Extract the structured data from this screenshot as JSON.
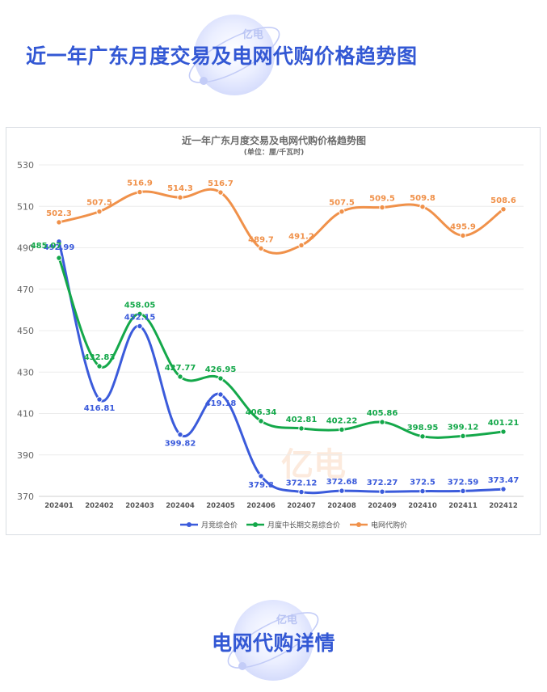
{
  "page": {
    "top_heading": "近一年广东月度交易及电网代购价格趋势图",
    "bottom_heading": "电网代购详情",
    "logo_text": "亿电",
    "accent_color": "#3358d4"
  },
  "chart_data": {
    "type": "line",
    "title": "近一年广东月度交易及电网代购价格趋势图",
    "subtitle": "(单位：厘/千瓦时)",
    "categories": [
      "202401",
      "202402",
      "202403",
      "202404",
      "202405",
      "202406",
      "202407",
      "202408",
      "202409",
      "202410",
      "202411",
      "202412"
    ],
    "ylim": [
      370,
      530
    ],
    "yticks": [
      "530",
      "510",
      "490",
      "470",
      "450",
      "430",
      "410",
      "390",
      "370"
    ],
    "grid": true,
    "legend_position": "bottom",
    "series": [
      {
        "name": "月竞综合价",
        "color": "#3b5bdb",
        "values": [
          492.99,
          416.81,
          452.15,
          399.82,
          419.18,
          379.8,
          372.12,
          372.68,
          372.27,
          372.5,
          372.59,
          373.47
        ],
        "labels": [
          "492.99",
          "416.81",
          "452.15",
          "399.82",
          "419.18",
          "379.8",
          "372.12",
          "372.68",
          "372.27",
          "372.5",
          "372.59",
          "373.47"
        ]
      },
      {
        "name": "月度中长期交易综合价",
        "color": "#14a84a",
        "values": [
          485.07,
          432.83,
          458.05,
          427.77,
          426.95,
          406.34,
          402.81,
          402.22,
          405.86,
          398.95,
          399.12,
          401.21
        ],
        "labels": [
          "485.07",
          "432.83",
          "458.05",
          "427.77",
          "426.95",
          "406.34",
          "402.81",
          "402.22",
          "405.86",
          "398.95",
          "399.12",
          "401.21"
        ]
      },
      {
        "name": "电网代购价",
        "color": "#f0914a",
        "values": [
          502.3,
          507.5,
          516.9,
          514.3,
          516.7,
          489.7,
          491.2,
          507.5,
          509.5,
          509.8,
          495.9,
          508.6
        ],
        "labels": [
          "502.3",
          "507.5",
          "516.9",
          "514.3",
          "516.7",
          "489.7",
          "491.2",
          "507.5",
          "509.5",
          "509.8",
          "495.9",
          "508.6"
        ]
      }
    ]
  }
}
